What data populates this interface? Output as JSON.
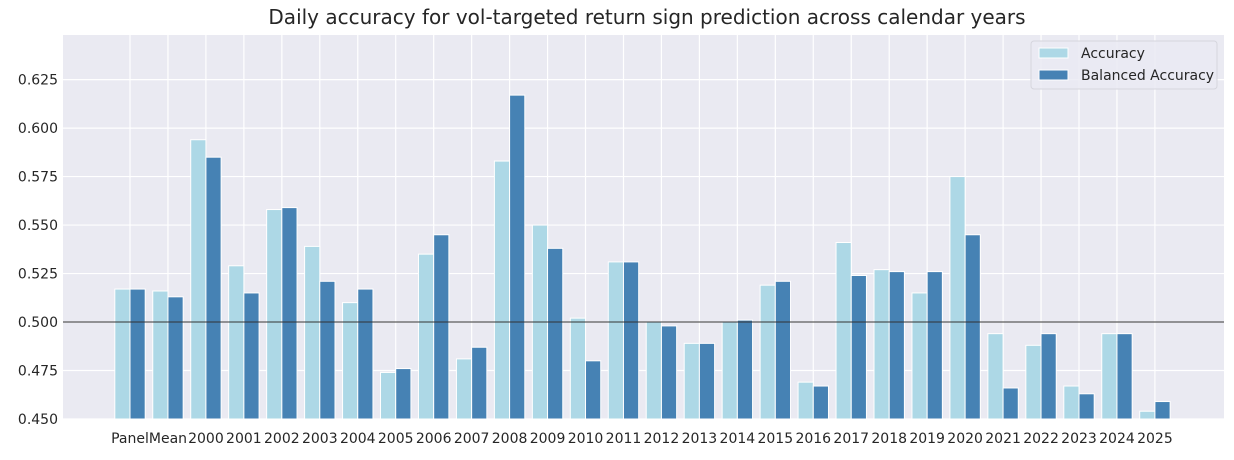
{
  "chart_data": {
    "type": "bar",
    "title": "Daily accuracy for vol-targeted return sign prediction across calendar years",
    "xlabel": "",
    "ylabel": "",
    "ylim": [
      0.45,
      0.648
    ],
    "yticks": [
      "0.450",
      "0.475",
      "0.500",
      "0.525",
      "0.550",
      "0.575",
      "0.600",
      "0.625"
    ],
    "grid": true,
    "reference_line": 0.5,
    "legend_position": "top-right",
    "categories": [
      "Panel",
      "Mean",
      "2000",
      "2001",
      "2002",
      "2003",
      "2004",
      "2005",
      "2006",
      "2007",
      "2008",
      "2009",
      "2010",
      "2011",
      "2012",
      "2013",
      "2014",
      "2015",
      "2016",
      "2017",
      "2018",
      "2019",
      "2020",
      "2021",
      "2022",
      "2023",
      "2024",
      "2025"
    ],
    "series": [
      {
        "name": "Accuracy",
        "color": "#add8e6",
        "values": [
          0.517,
          0.516,
          0.594,
          0.529,
          0.558,
          0.539,
          0.51,
          0.474,
          0.535,
          0.481,
          0.583,
          0.55,
          0.502,
          0.531,
          0.5,
          0.489,
          0.5,
          0.519,
          0.469,
          0.541,
          0.527,
          0.515,
          0.575,
          0.494,
          0.488,
          0.467,
          0.494,
          0.454
        ]
      },
      {
        "name": "Balanced Accuracy",
        "color": "#4682b4",
        "values": [
          0.517,
          0.513,
          0.585,
          0.515,
          0.559,
          0.521,
          0.517,
          0.476,
          0.545,
          0.487,
          0.617,
          0.538,
          0.48,
          0.531,
          0.498,
          0.489,
          0.501,
          0.521,
          0.467,
          0.524,
          0.526,
          0.526,
          0.545,
          0.466,
          0.494,
          0.463,
          0.494,
          0.459
        ]
      }
    ]
  }
}
